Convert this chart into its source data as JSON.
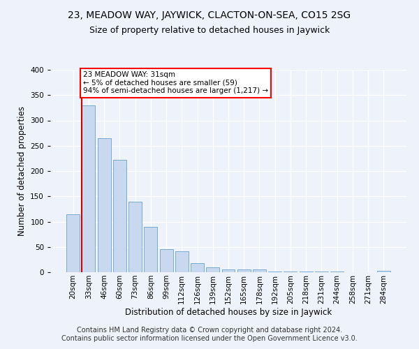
{
  "title": "23, MEADOW WAY, JAYWICK, CLACTON-ON-SEA, CO15 2SG",
  "subtitle": "Size of property relative to detached houses in Jaywick",
  "xlabel": "Distribution of detached houses by size in Jaywick",
  "ylabel": "Number of detached properties",
  "categories": [
    "20sqm",
    "33sqm",
    "46sqm",
    "60sqm",
    "73sqm",
    "86sqm",
    "99sqm",
    "112sqm",
    "126sqm",
    "139sqm",
    "152sqm",
    "165sqm",
    "178sqm",
    "192sqm",
    "205sqm",
    "218sqm",
    "231sqm",
    "244sqm",
    "258sqm",
    "271sqm",
    "284sqm"
  ],
  "values": [
    115,
    330,
    265,
    222,
    140,
    90,
    45,
    42,
    18,
    9,
    5,
    5,
    6,
    1,
    2,
    2,
    1,
    1,
    0,
    0,
    3
  ],
  "bar_color": "#c8d8ee",
  "bar_edge_color": "#7aaad0",
  "highlight_color": "#cc0000",
  "annotation_line1": "23 MEADOW WAY: 31sqm",
  "annotation_line2": "← 5% of detached houses are smaller (59)",
  "annotation_line3": "94% of semi-detached houses are larger (1,217) →",
  "ylim": [
    0,
    400
  ],
  "yticks": [
    0,
    50,
    100,
    150,
    200,
    250,
    300,
    350,
    400
  ],
  "background_color": "#eef2fb",
  "grid_color": "#ffffff",
  "footer_text": "Contains HM Land Registry data © Crown copyright and database right 2024.\nContains public sector information licensed under the Open Government Licence v3.0.",
  "title_fontsize": 10,
  "subtitle_fontsize": 9,
  "axis_label_fontsize": 8.5,
  "tick_fontsize": 7.5,
  "footer_fontsize": 7
}
